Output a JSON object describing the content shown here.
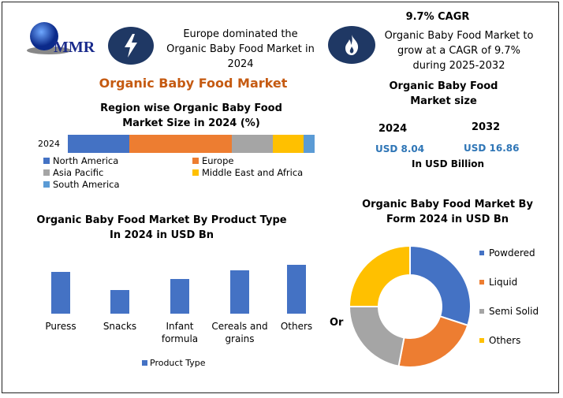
{
  "logo": {
    "text": "MMR"
  },
  "header": {
    "left_text": "Europe dominated the Organic Baby Food Market in 2024",
    "cagr_title": "9.7% CAGR",
    "cagr_text": "Organic Baby Food Market to grow at a CAGR of 9.7% during 2025-2032",
    "left_icon": "lightning-icon",
    "right_icon": "flame-icon"
  },
  "main_title": "Organic Baby Food Market",
  "market_size": {
    "title": "Organic Baby Food Market size",
    "year1": "2024",
    "year2": "2032",
    "value1": "USD 8.04",
    "value2": "USD 16.86",
    "unit": "In USD Billion"
  },
  "colors": {
    "navy": "#1f3864",
    "title_orange": "#c55a11",
    "value_blue": "#2e75b6"
  },
  "chart_data": [
    {
      "type": "bar",
      "orientation": "horizontal-stacked",
      "title": "Region wise Organic Baby Food Market Size in 2024 (%)",
      "categories": [
        "2024"
      ],
      "series": [
        {
          "name": "North America",
          "values": [
            25
          ],
          "color": "#4472c4"
        },
        {
          "name": "Europe",
          "values": [
            41.5
          ],
          "color": "#ed7d31"
        },
        {
          "name": "Asia Pacific",
          "values": [
            16.6
          ],
          "color": "#a5a5a5"
        },
        {
          "name": "Middle East and Africa",
          "values": [
            12.5
          ],
          "color": "#ffc000"
        },
        {
          "name": "South America",
          "values": [
            4.4
          ],
          "color": "#5b9bd5"
        }
      ],
      "legend": "bottom"
    },
    {
      "type": "bar",
      "title": "Organic Baby Food Market By Product Type In 2024 in USD Bn",
      "categories": [
        "Puress",
        "Snacks",
        "Infant formula",
        "Cereals and grains",
        "Others"
      ],
      "series": [
        {
          "name": "Product Type",
          "values": [
            53,
            30,
            44,
            55,
            62
          ],
          "color": "#4472c4"
        }
      ],
      "legend": "bottom",
      "grid": false
    },
    {
      "type": "pie",
      "donut": true,
      "title": "Organic Baby Food Market By Form 2024 in USD Bn",
      "categories": [
        "Powdered",
        "Liquid",
        "Semi Solid",
        "Others"
      ],
      "values": [
        30,
        23,
        22,
        25
      ],
      "colors": [
        "#4472c4",
        "#ed7d31",
        "#a5a5a5",
        "#ffc000"
      ],
      "legend": "right",
      "side_label": "Or"
    }
  ]
}
